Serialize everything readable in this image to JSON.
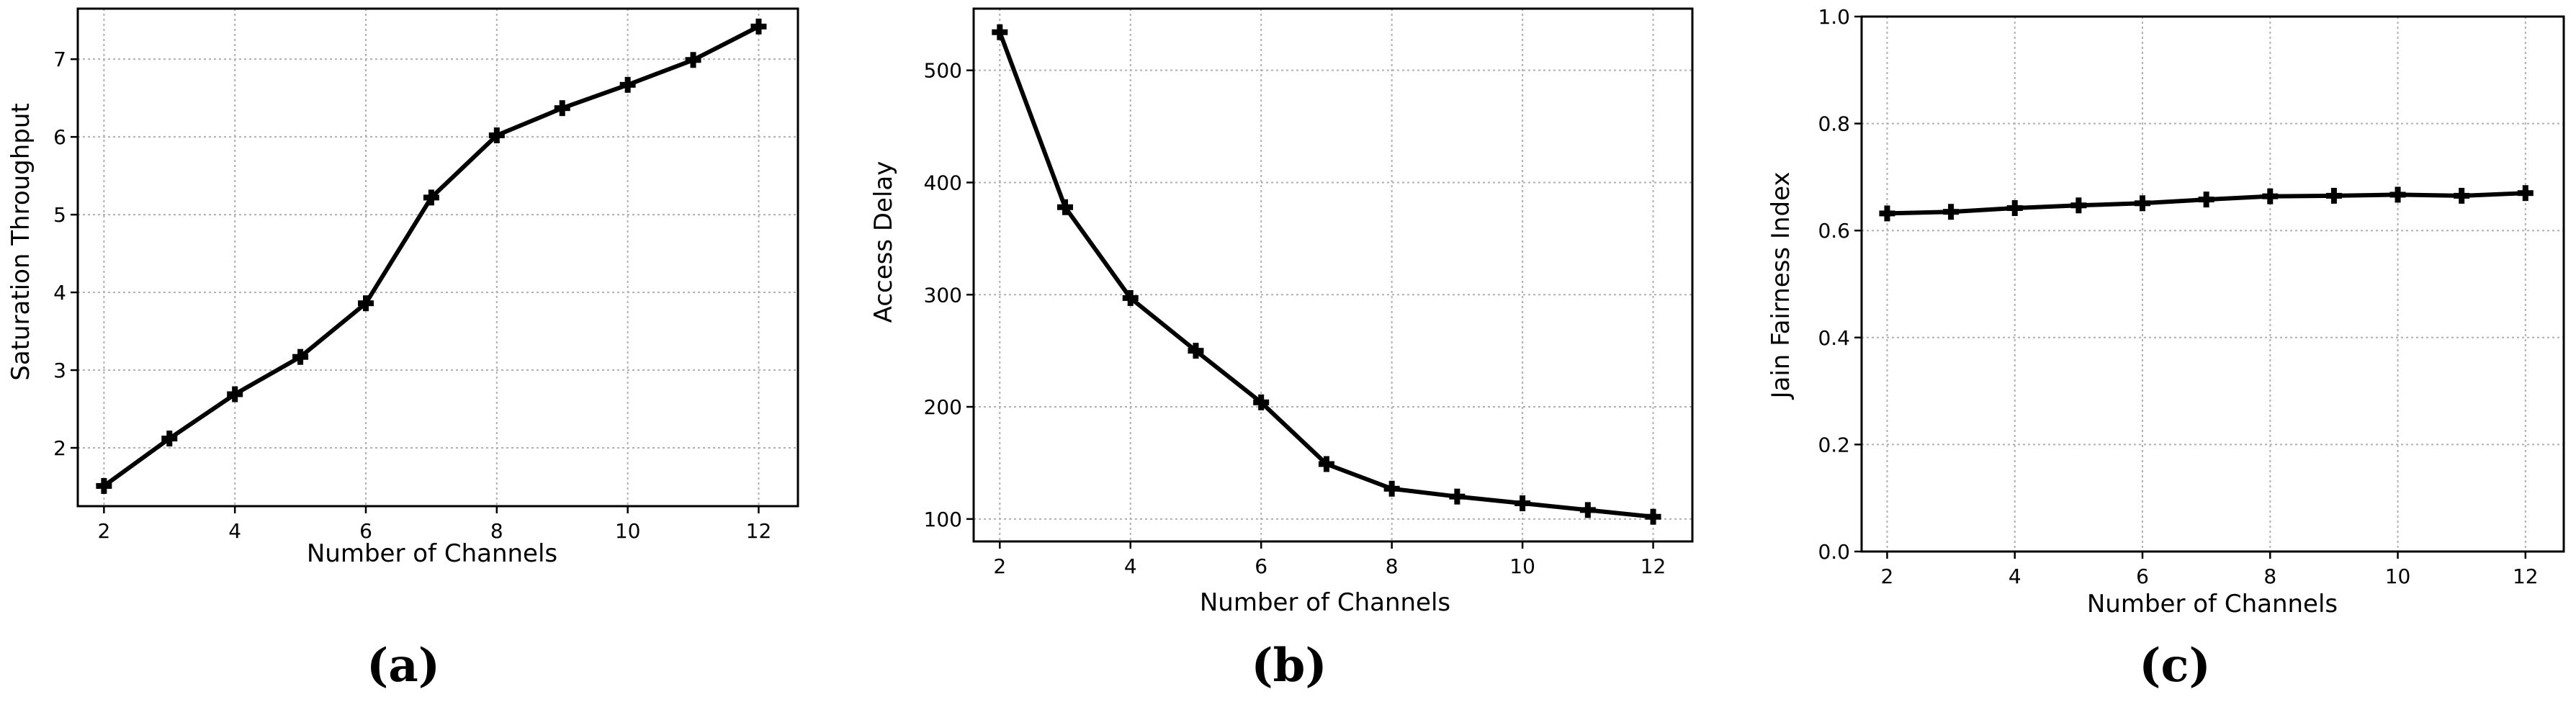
{
  "chart_data": [
    {
      "type": "line",
      "caption": "(a)",
      "xlabel": "Number of Channels",
      "ylabel": "Saturation Throughput",
      "xlim": [
        1.6,
        12.6
      ],
      "ylim": [
        1.25,
        7.65
      ],
      "xticks": [
        2,
        4,
        6,
        8,
        10,
        12
      ],
      "yticks": [
        2,
        3,
        4,
        5,
        6,
        7
      ],
      "ytick_decimals": 0,
      "grid": true,
      "x": [
        2,
        3,
        4,
        5,
        6,
        7,
        8,
        9,
        10,
        11,
        12
      ],
      "series": [
        {
          "values": [
            1.51,
            2.12,
            2.69,
            3.17,
            3.86,
            5.22,
            6.02,
            6.37,
            6.67,
            6.99,
            7.42
          ]
        }
      ]
    },
    {
      "type": "line",
      "caption": "(b)",
      "xlabel": "Number of Channels",
      "ylabel": "Access Delay",
      "xlim": [
        1.6,
        12.6
      ],
      "ylim": [
        80,
        555
      ],
      "xticks": [
        2,
        4,
        6,
        8,
        10,
        12
      ],
      "yticks": [
        100,
        200,
        300,
        400,
        500
      ],
      "ytick_decimals": 0,
      "grid": true,
      "x": [
        2,
        3,
        4,
        5,
        6,
        7,
        8,
        9,
        10,
        11,
        12
      ],
      "series": [
        {
          "values": [
            534,
            378,
            297,
            250,
            204,
            149,
            127,
            120,
            114,
            108,
            102
          ]
        }
      ]
    },
    {
      "type": "line",
      "caption": "(c)",
      "xlabel": "Number of Channels",
      "ylabel": "Jain Fairness Index",
      "xlim": [
        1.6,
        12.6
      ],
      "ylim": [
        0.0,
        1.0
      ],
      "xticks": [
        2,
        4,
        6,
        8,
        10,
        12
      ],
      "yticks": [
        0.0,
        0.2,
        0.4,
        0.6,
        0.8,
        1.0
      ],
      "ytick_decimals": 1,
      "grid": true,
      "x": [
        2,
        3,
        4,
        5,
        6,
        7,
        8,
        9,
        10,
        11,
        12
      ],
      "series": [
        {
          "values": [
            0.632,
            0.635,
            0.642,
            0.647,
            0.651,
            0.658,
            0.664,
            0.665,
            0.667,
            0.665,
            0.67
          ]
        }
      ]
    }
  ]
}
